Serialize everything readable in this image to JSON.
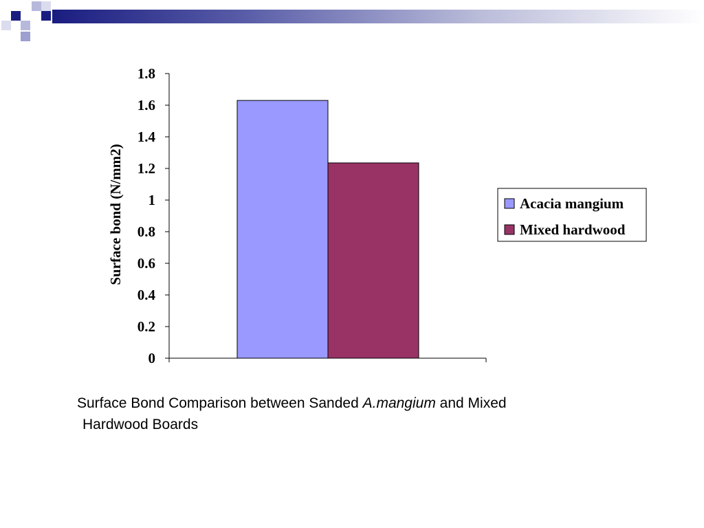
{
  "chart_data": {
    "type": "bar",
    "categories": [
      ""
    ],
    "series": [
      {
        "name": "Acacia mangium",
        "values": [
          1.63
        ],
        "color": "#9999ff"
      },
      {
        "name": "Mixed hardwood",
        "values": [
          1.235
        ],
        "color": "#993366"
      }
    ],
    "title": "",
    "xlabel": "",
    "ylabel": "Surface bond (N/mm2)",
    "ylim": [
      0,
      1.8
    ],
    "yticks": [
      "0",
      "0.2",
      "0.4",
      "0.6",
      "0.8",
      "1",
      "1.2",
      "1.4",
      "1.6",
      "1.8"
    ],
    "grid": false,
    "legend_position": "right"
  },
  "caption": {
    "part1": "Surface Bond Comparison between Sanded ",
    "italic": "A.mangium",
    "part2": " and Mixed",
    "line2": "Hardwood Boards"
  },
  "theme": {
    "header_dark": "#1a1d80",
    "header_light": "#9c9fcf"
  }
}
